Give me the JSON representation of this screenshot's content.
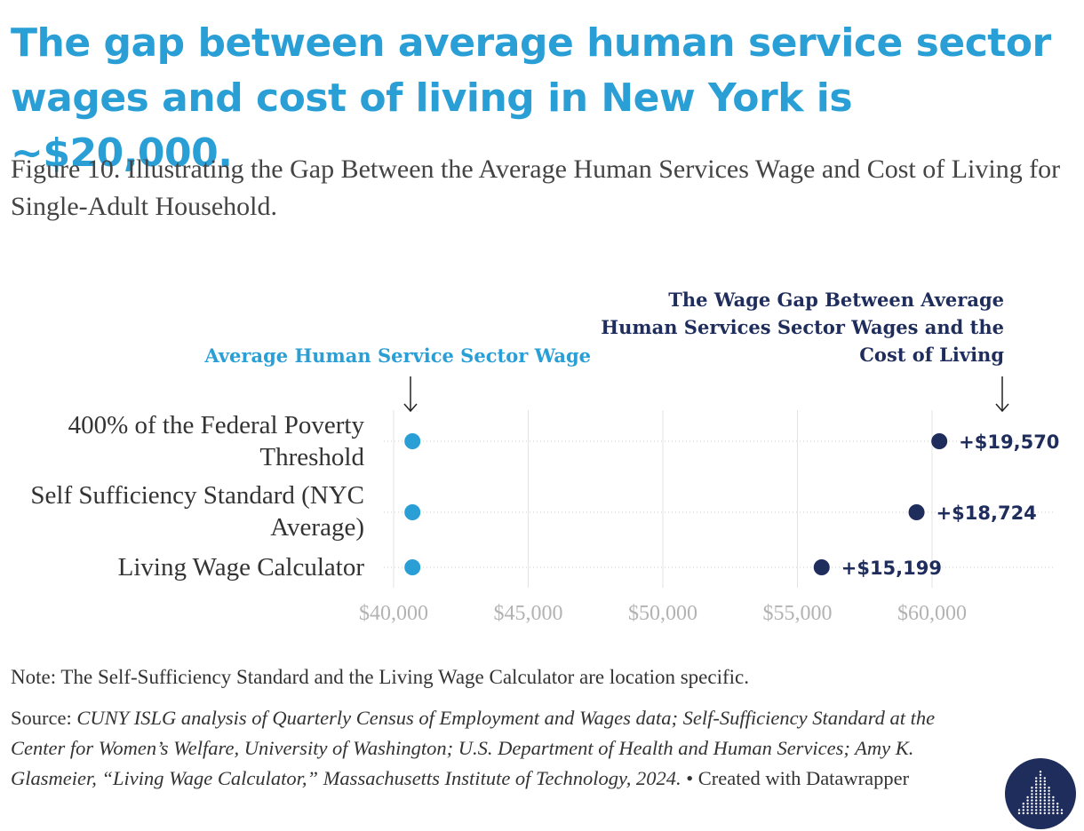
{
  "colors": {
    "accent": "#2a9fd6",
    "dark": "#1f2d5c",
    "bar_start": "#8cc8ea",
    "bar_end": "#4d5a85",
    "grid": "#e3e3e3",
    "muted": "#b3b3b3"
  },
  "headline": "The gap between average human service sector wages and cost of living in New York is ~$20,000.",
  "subtitle": "Figure 10. Illustrating the Gap Between the Average Human Services Wage and Cost of Living for Single-Adult Household.",
  "chart_data": {
    "type": "range",
    "x_ticks": [
      40000,
      45000,
      50000,
      55000,
      60000
    ],
    "x_tick_labels": [
      "$40,000",
      "$45,000",
      "$50,000",
      "$55,000",
      "$60,000"
    ],
    "xlim": [
      40000,
      64500
    ],
    "grid": true,
    "annotation_left": "Average Human Service Sector Wage",
    "annotation_right": [
      "The Wage Gap Between Average",
      "Human Services Sector Wages and the",
      "Cost of Living"
    ],
    "rows": [
      {
        "label": [
          "400% of the Federal Poverty",
          "Threshold"
        ],
        "start": 40700,
        "end": 60270,
        "gap_label": "+$19,570"
      },
      {
        "label": [
          "Self Sufficiency Standard (NYC",
          "Average)"
        ],
        "start": 40700,
        "end": 59424,
        "gap_label": "+$18,724"
      },
      {
        "label": [
          "Living Wage Calculator"
        ],
        "start": 40700,
        "end": 55899,
        "gap_label": "+$15,199"
      }
    ]
  },
  "note": "Note: The Self-Sufficiency Standard and the Living Wage Calculator are location specific.",
  "source": {
    "prefix": "Source: ",
    "text": "CUNY ISLG analysis of Quarterly Census of Employment and Wages data; Self-Sufficiency Standard at the Center for Women’s Welfare, University of Washington; U.S. Department of Health and Human Services; Amy K. Glasmeier, “Living Wage Calculator,” Massachusetts Institute of Technology, 2024.",
    "suffix": " • Created with Datawrapper"
  },
  "logo_icon": "building-logo-icon"
}
